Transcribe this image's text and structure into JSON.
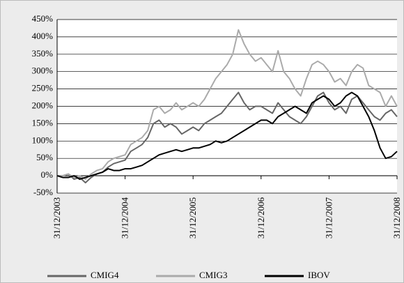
{
  "chart_data": {
    "type": "line",
    "categories": [
      "31/12/2003",
      null,
      null,
      null,
      null,
      null,
      null,
      null,
      null,
      null,
      null,
      null,
      "31/12/2004",
      null,
      null,
      null,
      null,
      null,
      null,
      null,
      null,
      null,
      null,
      null,
      "31/12/2005",
      null,
      null,
      null,
      null,
      null,
      null,
      null,
      null,
      null,
      null,
      null,
      "31/12/2006",
      null,
      null,
      null,
      null,
      null,
      null,
      null,
      null,
      null,
      null,
      null,
      "31/12/2007",
      null,
      null,
      null,
      null,
      null,
      null,
      null,
      null,
      null,
      null,
      null,
      "31/12/2008"
    ],
    "series": [
      {
        "name": "CMIG4",
        "color": "#666666",
        "values": [
          0,
          0,
          5,
          -10,
          -5,
          -20,
          -5,
          5,
          10,
          25,
          35,
          40,
          45,
          70,
          80,
          90,
          110,
          150,
          160,
          140,
          150,
          140,
          120,
          130,
          140,
          130,
          150,
          160,
          170,
          180,
          200,
          220,
          240,
          210,
          190,
          200,
          200,
          190,
          180,
          210,
          190,
          170,
          160,
          150,
          170,
          200,
          230,
          240,
          210,
          190,
          200,
          180,
          220,
          230,
          210,
          190,
          170,
          160,
          180,
          190,
          170
        ]
      },
      {
        "name": "CMIG3",
        "color": "#aaaaaa",
        "values": [
          0,
          0,
          5,
          -5,
          0,
          -10,
          5,
          15,
          20,
          40,
          50,
          55,
          60,
          90,
          100,
          110,
          130,
          190,
          200,
          180,
          190,
          210,
          190,
          200,
          210,
          200,
          220,
          250,
          280,
          300,
          320,
          350,
          420,
          380,
          350,
          330,
          340,
          320,
          300,
          360,
          300,
          280,
          250,
          230,
          280,
          320,
          330,
          320,
          300,
          270,
          280,
          260,
          300,
          320,
          310,
          260,
          250,
          240,
          200,
          230,
          200
        ]
      },
      {
        "name": "IBOV",
        "color": "#000000",
        "values": [
          0,
          -5,
          -5,
          0,
          -10,
          -5,
          0,
          5,
          10,
          20,
          15,
          15,
          20,
          20,
          25,
          30,
          40,
          50,
          60,
          65,
          70,
          75,
          70,
          75,
          80,
          80,
          85,
          90,
          100,
          95,
          100,
          110,
          120,
          130,
          140,
          150,
          160,
          160,
          150,
          170,
          180,
          190,
          200,
          190,
          180,
          210,
          220,
          230,
          220,
          200,
          210,
          230,
          240,
          230,
          200,
          170,
          130,
          80,
          50,
          55,
          70
        ]
      }
    ],
    "ylim": [
      -50,
      450
    ],
    "yticks": [
      {
        "value": -50,
        "label": "-50%"
      },
      {
        "value": 0,
        "label": "0%"
      },
      {
        "value": 50,
        "label": "50%"
      },
      {
        "value": 100,
        "label": "100%"
      },
      {
        "value": 150,
        "label": "150%"
      },
      {
        "value": 200,
        "label": "200%"
      },
      {
        "value": 250,
        "label": "250%"
      },
      {
        "value": 300,
        "label": "300%"
      },
      {
        "value": 350,
        "label": "350%"
      },
      {
        "value": 400,
        "label": "400%"
      },
      {
        "value": 450,
        "label": "450%"
      }
    ],
    "grid": true,
    "legend": "bottom"
  }
}
